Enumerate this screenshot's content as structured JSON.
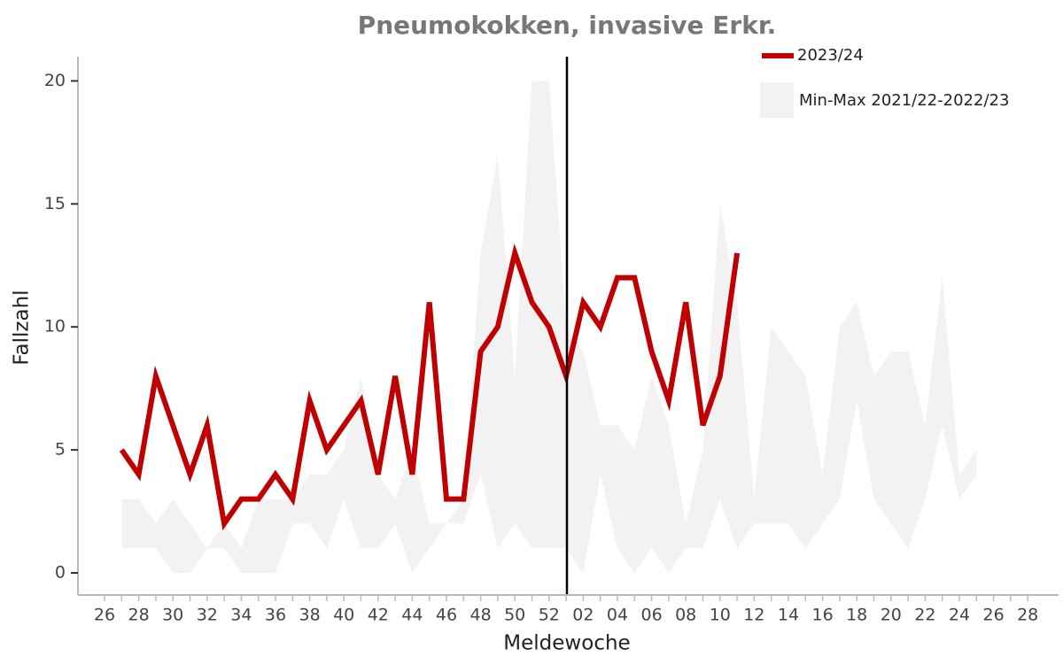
{
  "chart_data": {
    "type": "line",
    "title": "Pneumokokken, invasive Erkr.",
    "x_label": "Meldewoche",
    "y_label": "Fallzahl",
    "categories": [
      "26",
      null,
      "28",
      null,
      "30",
      null,
      "32",
      null,
      "34",
      null,
      "36",
      null,
      "38",
      null,
      "40",
      null,
      "42",
      null,
      "44",
      null,
      "46",
      null,
      "48",
      null,
      "50",
      null,
      "52",
      null,
      "02",
      null,
      "04",
      null,
      "06",
      null,
      "08",
      null,
      "10",
      null,
      "12",
      null,
      "14",
      null,
      "16",
      null,
      "18",
      null,
      "20",
      null,
      "22",
      null,
      "24",
      null,
      "26",
      null,
      "28"
    ],
    "series": [
      {
        "name": "2023/24",
        "color": "#c00000",
        "values": [
          null,
          5,
          4,
          8,
          6,
          4,
          6,
          2,
          3,
          3,
          4,
          3,
          7,
          5,
          6,
          7,
          4,
          8,
          4,
          11,
          3,
          3,
          9,
          10,
          13,
          11,
          10,
          8,
          11,
          10,
          12,
          12,
          9,
          7,
          11,
          6,
          8,
          13,
          null,
          null,
          null,
          null,
          null,
          null,
          null,
          null,
          null,
          null,
          null,
          null,
          null,
          null,
          null,
          null,
          null
        ]
      },
      {
        "name": "Min-Max 2021/22-2022/23",
        "color": "#f2f2f2",
        "min": [
          null,
          1,
          1,
          1,
          0,
          0,
          1,
          1,
          0,
          0,
          0,
          2,
          2,
          1,
          3,
          1,
          1,
          2,
          0,
          1,
          2,
          2,
          4,
          1,
          2,
          1,
          1,
          1,
          0,
          4,
          1,
          0,
          1,
          0,
          1,
          1,
          3,
          1,
          2,
          2,
          2,
          1,
          2,
          3,
          7,
          3,
          2,
          1,
          3,
          6,
          3,
          4,
          null,
          null,
          null
        ],
        "max": [
          null,
          3,
          3,
          2,
          3,
          2,
          1,
          2,
          1,
          3,
          3,
          3,
          4,
          4,
          5,
          8,
          4,
          3,
          5,
          2,
          2,
          3,
          13,
          17,
          8,
          20,
          20,
          10,
          9,
          6,
          6,
          5,
          8,
          6,
          2,
          5,
          15,
          11,
          3,
          10,
          9,
          8,
          4,
          10,
          11,
          8,
          9,
          9,
          6,
          12,
          4,
          5,
          null,
          null,
          null
        ]
      }
    ],
    "ylim": [
      -0.9,
      20.95
    ],
    "yticks": [
      0,
      5,
      10,
      15,
      20
    ],
    "legend": "top-right",
    "grid": false
  }
}
